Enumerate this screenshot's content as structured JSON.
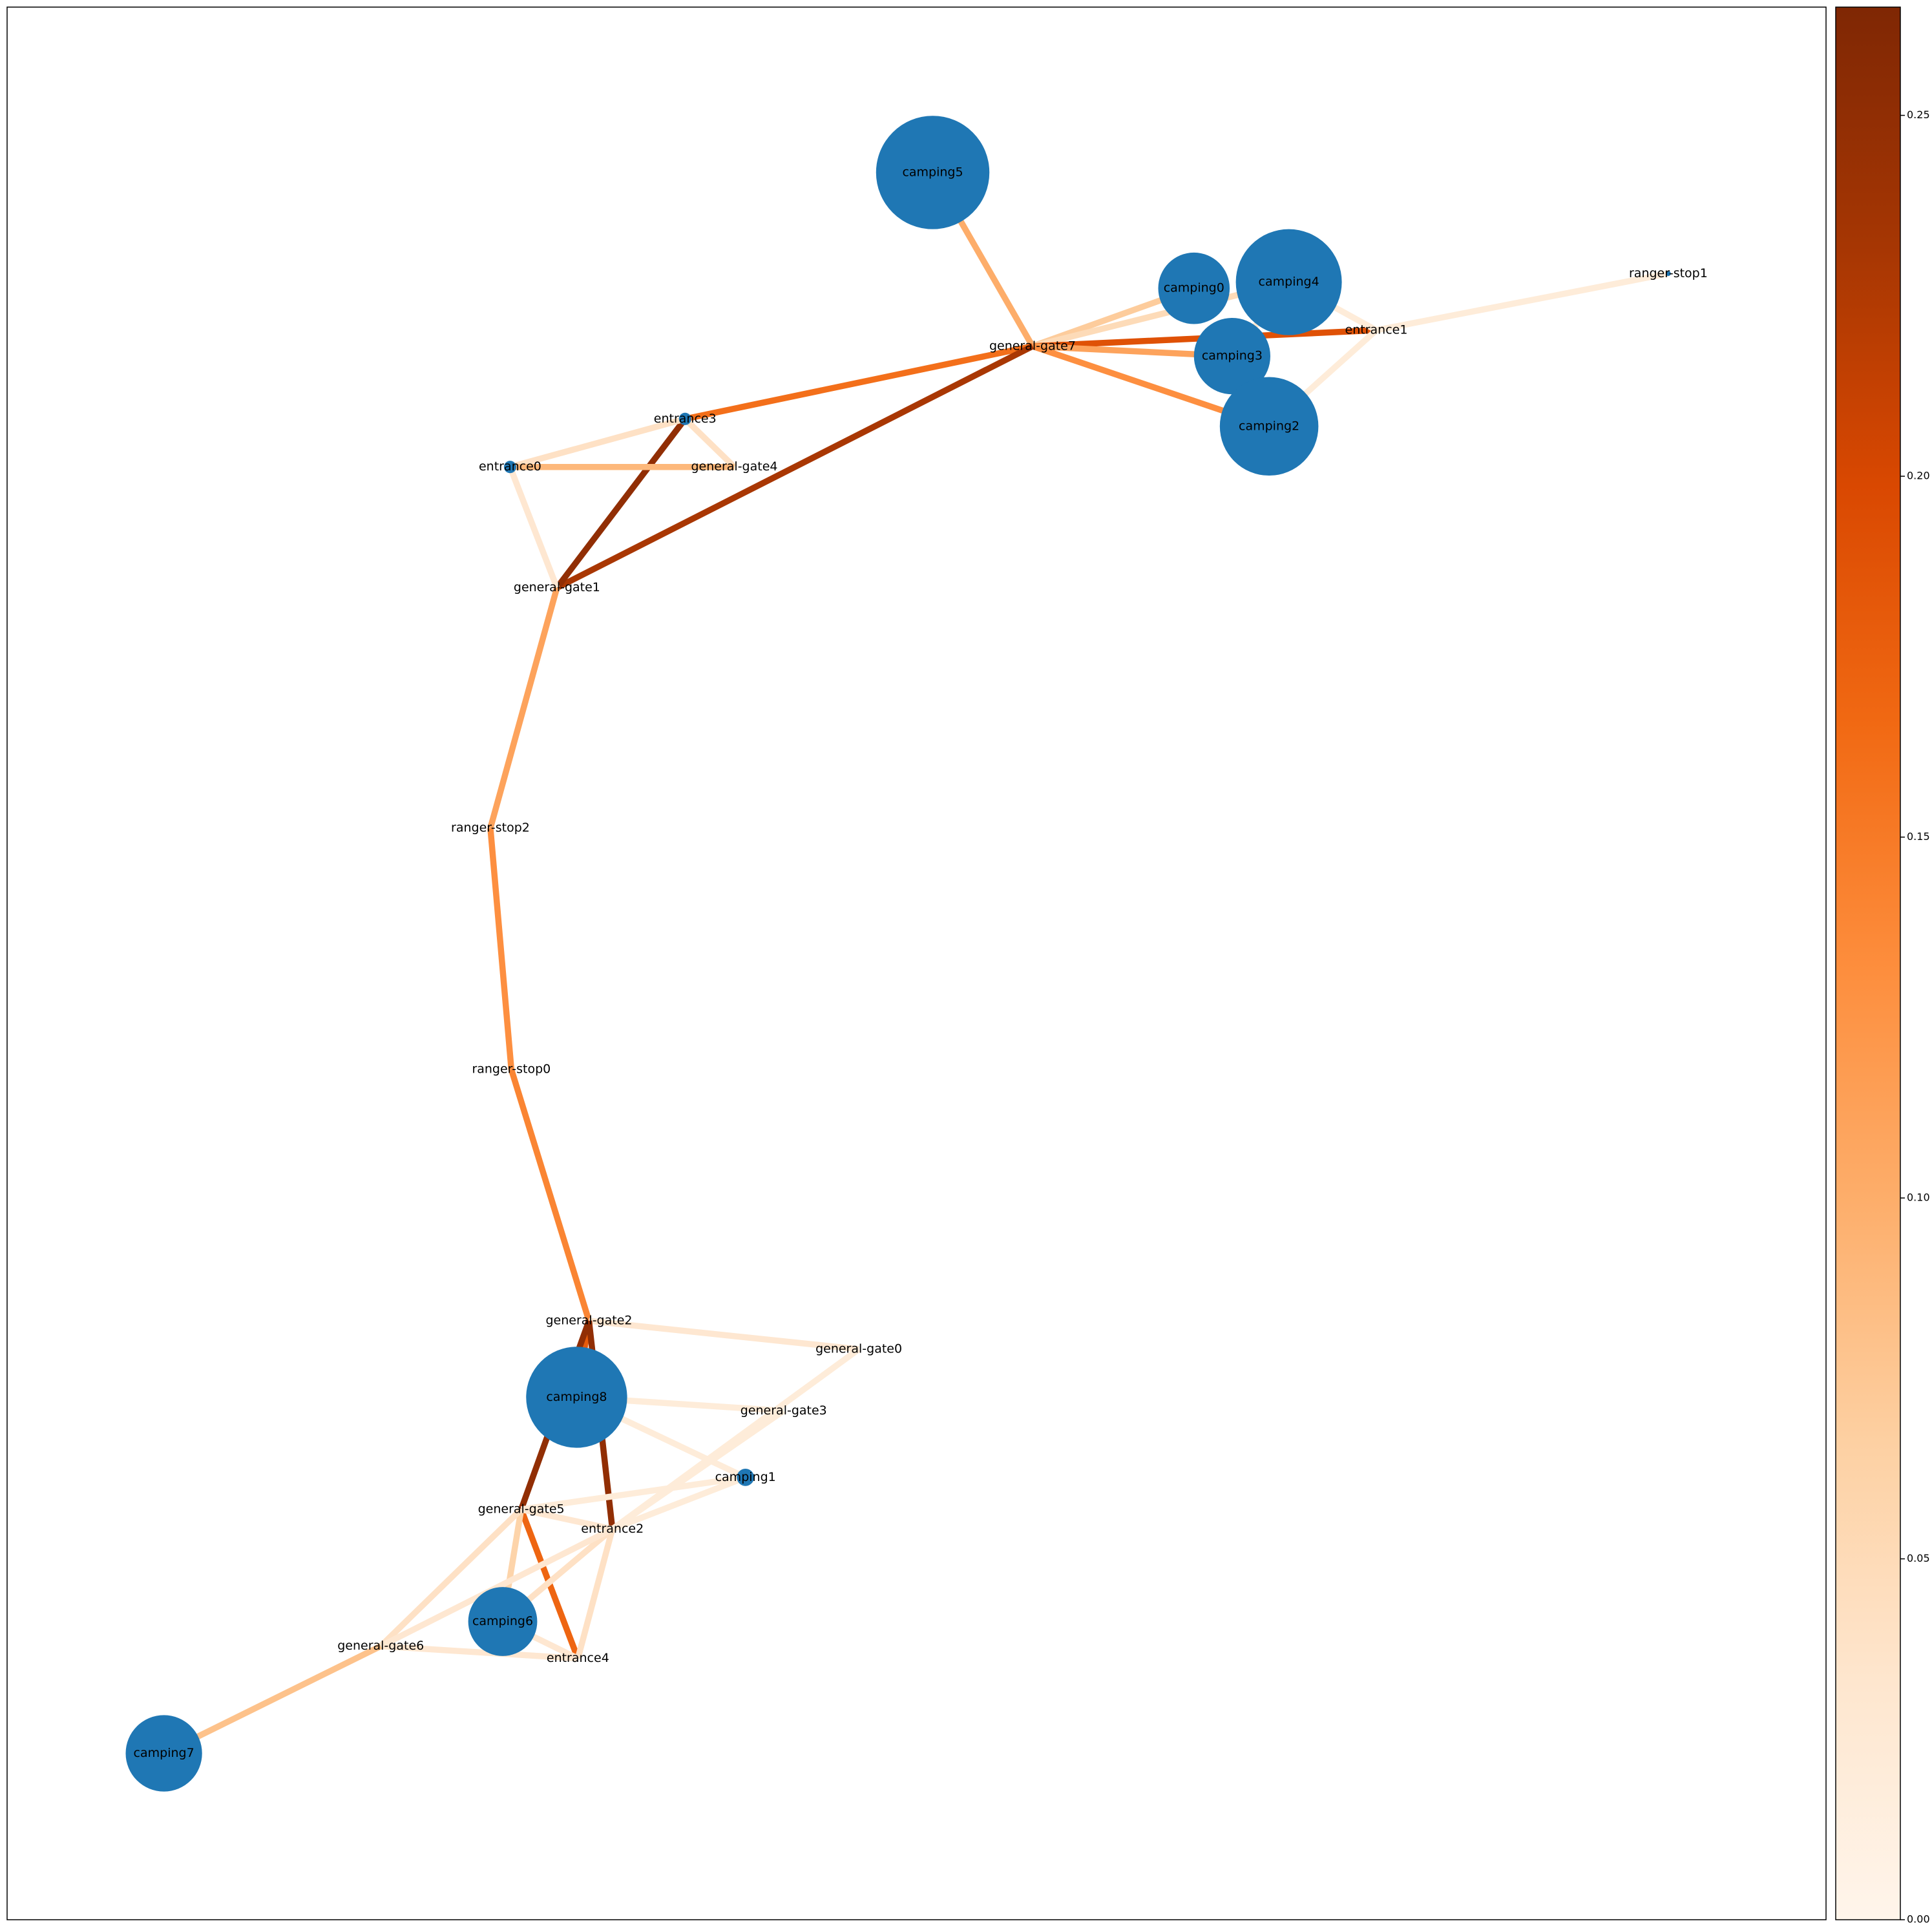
{
  "nodes": [
    {
      "label": "camping5"
    },
    {
      "label": "camping0"
    },
    {
      "label": "camping4"
    },
    {
      "label": "ranger-stop1"
    },
    {
      "label": "entrance1"
    },
    {
      "label": "general-gate7"
    },
    {
      "label": "camping3"
    },
    {
      "label": "camping2"
    },
    {
      "label": "entrance3"
    },
    {
      "label": "entrance0"
    },
    {
      "label": "general-gate4"
    },
    {
      "label": "general-gate1"
    },
    {
      "label": "ranger-stop2"
    },
    {
      "label": "ranger-stop0"
    },
    {
      "label": "general-gate2"
    },
    {
      "label": "general-gate0"
    },
    {
      "label": "camping8"
    },
    {
      "label": "general-gate3"
    },
    {
      "label": "camping1"
    },
    {
      "label": "general-gate5"
    },
    {
      "label": "entrance2"
    },
    {
      "label": "camping6"
    },
    {
      "label": "general-gate6"
    },
    {
      "label": "entrance4"
    },
    {
      "label": "camping7"
    }
  ],
  "edges": [
    {
      "source": "camping5",
      "target": "general-gate7",
      "value": 0.1
    },
    {
      "source": "general-gate7",
      "target": "camping0",
      "value": 0.07
    },
    {
      "source": "general-gate7",
      "target": "camping4",
      "value": 0.05
    },
    {
      "source": "general-gate7",
      "target": "entrance1",
      "value": 0.19
    },
    {
      "source": "general-gate7",
      "target": "camping3",
      "value": 0.11
    },
    {
      "source": "general-gate7",
      "target": "camping2",
      "value": 0.13
    },
    {
      "source": "general-gate7",
      "target": "entrance3",
      "value": 0.16
    },
    {
      "source": "general-gate7",
      "target": "general-gate1",
      "value": 0.23
    },
    {
      "source": "entrance3",
      "target": "general-gate1",
      "value": 0.25
    },
    {
      "source": "entrance3",
      "target": "entrance0",
      "value": 0.04
    },
    {
      "source": "entrance3",
      "target": "general-gate4",
      "value": 0.04
    },
    {
      "source": "entrance0",
      "target": "general-gate4",
      "value": 0.09
    },
    {
      "source": "entrance0",
      "target": "general-gate1",
      "value": 0.03
    },
    {
      "source": "general-gate1",
      "target": "ranger-stop2",
      "value": 0.11
    },
    {
      "source": "ranger-stop2",
      "target": "ranger-stop0",
      "value": 0.13
    },
    {
      "source": "ranger-stop0",
      "target": "general-gate2",
      "value": 0.14
    },
    {
      "source": "entrance1",
      "target": "ranger-stop1",
      "value": 0.02
    },
    {
      "source": "entrance1",
      "target": "camping2",
      "value": 0.02
    },
    {
      "source": "entrance1",
      "target": "camping4",
      "value": 0.02
    },
    {
      "source": "camping4",
      "target": "camping3",
      "value": 0.03
    },
    {
      "source": "general-gate2",
      "target": "general-gate0",
      "value": 0.03
    },
    {
      "source": "general-gate2",
      "target": "camping8",
      "value": 0.18
    },
    {
      "source": "general-gate2",
      "target": "entrance2",
      "value": 0.25
    },
    {
      "source": "general-gate2",
      "target": "general-gate5",
      "value": 0.25
    },
    {
      "source": "camping8",
      "target": "general-gate3",
      "value": 0.02
    },
    {
      "source": "camping8",
      "target": "camping1",
      "value": 0.02
    },
    {
      "source": "general-gate0",
      "target": "entrance2",
      "value": 0.02
    },
    {
      "source": "general-gate3",
      "target": "entrance2",
      "value": 0.02
    },
    {
      "source": "camping1",
      "target": "general-gate5",
      "value": 0.02
    },
    {
      "source": "camping1",
      "target": "entrance2",
      "value": 0.02
    },
    {
      "source": "general-gate5",
      "target": "entrance4",
      "value": 0.17
    },
    {
      "source": "general-gate5",
      "target": "camping6",
      "value": 0.06
    },
    {
      "source": "general-gate5",
      "target": "general-gate6",
      "value": 0.04
    },
    {
      "source": "general-gate5",
      "target": "entrance2",
      "value": 0.03
    },
    {
      "source": "entrance2",
      "target": "camping6",
      "value": 0.04
    },
    {
      "source": "entrance2",
      "target": "entrance4",
      "value": 0.04
    },
    {
      "source": "entrance2",
      "target": "general-gate6",
      "value": 0.03
    },
    {
      "source": "camping6",
      "target": "entrance4",
      "value": 0.03
    },
    {
      "source": "general-gate6",
      "target": "entrance4",
      "value": 0.03
    },
    {
      "source": "general-gate6",
      "target": "camping7",
      "value": 0.08
    }
  ],
  "colorbar": {
    "lim": [
      0,
      0.265
    ],
    "ticks": [
      {
        "value": 0,
        "label": "0.00"
      },
      {
        "value": 0.05,
        "label": "0.05"
      },
      {
        "value": 0.1,
        "label": "0.10"
      },
      {
        "value": 0.15,
        "label": "0.15"
      },
      {
        "value": 0.2,
        "label": "0.20"
      },
      {
        "value": 0.25,
        "label": "0.25"
      }
    ],
    "colormap": [
      "#fff5eb",
      "#fee6ce",
      "#fdd0a2",
      "#fdae6b",
      "#fd8d3c",
      "#f16913",
      "#d94801",
      "#a63603",
      "#7f2704"
    ]
  },
  "node_color": "#1f77b4"
}
